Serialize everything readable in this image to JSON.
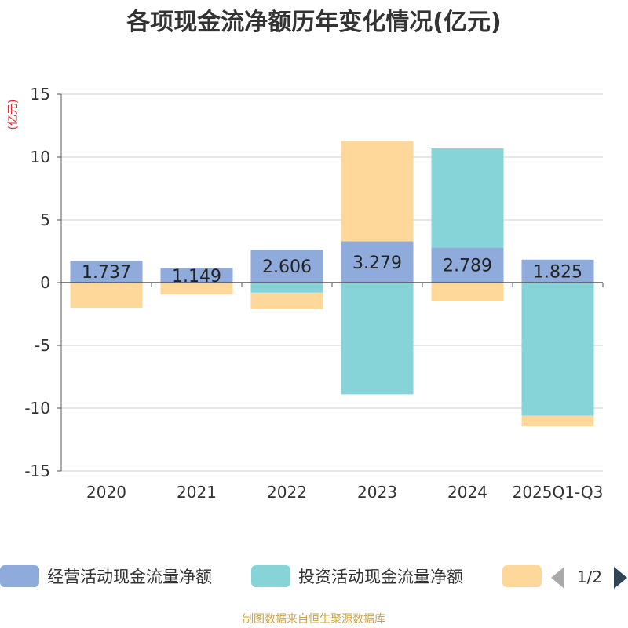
{
  "chart_data": {
    "type": "bar",
    "stacked": true,
    "title": "各项现金流净额历年变化情况(亿元)",
    "ylabel": "(亿元)",
    "ylim": [
      -15,
      15
    ],
    "yticks": [
      15,
      10,
      5,
      0,
      -5,
      -10,
      -15
    ],
    "categories": [
      "2020",
      "2021",
      "2022",
      "2023",
      "2024",
      "2025Q1-Q3"
    ],
    "series": [
      {
        "name": "经营活动现金流量净额",
        "color": "#8eabdb",
        "values": [
          1.737,
          1.149,
          2.606,
          3.279,
          2.789,
          1.825
        ],
        "labeled": true
      },
      {
        "name": "投资活动现金流量净额",
        "color": "#86d4d8",
        "values": [
          0,
          0,
          -0.8,
          -8.9,
          7.9,
          -10.6
        ],
        "labeled": false
      },
      {
        "name": "",
        "color": "#fdd89a",
        "values": [
          -2.0,
          -0.95,
          -1.3,
          8.0,
          -1.5,
          -0.85
        ],
        "labeled": false
      }
    ],
    "legend": {
      "position": "bottom",
      "page": "1/2"
    }
  },
  "footer": "制图数据来自恒生聚源数据库"
}
